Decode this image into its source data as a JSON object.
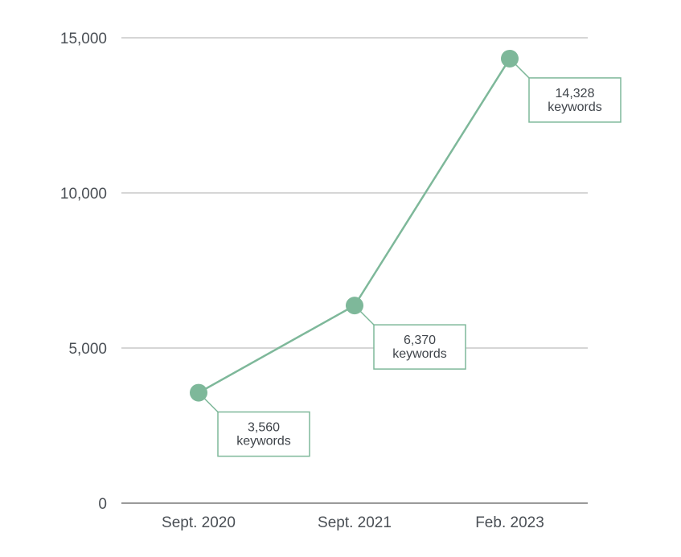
{
  "chart_data": {
    "type": "line",
    "categories": [
      "Sept. 2020",
      "Sept. 2021",
      "Feb. 2023"
    ],
    "series": [
      {
        "values": [
          3560,
          6370,
          14328
        ]
      }
    ],
    "data_labels": [
      {
        "value": "3,560",
        "unit": "keywords"
      },
      {
        "value": "6,370",
        "unit": "keywords"
      },
      {
        "value": "14,328",
        "unit": "keywords"
      }
    ],
    "yticks": [
      {
        "value": 0,
        "label": "0"
      },
      {
        "value": 5000,
        "label": "5,000"
      },
      {
        "value": 10000,
        "label": "10,000"
      },
      {
        "value": 15000,
        "label": "15,000"
      }
    ],
    "ylim": [
      0,
      15000
    ],
    "grid": true,
    "title": "",
    "xlabel": "",
    "ylabel": "",
    "colors": {
      "line": "#7eb89a",
      "marker": "#7eb89a",
      "callout_border": "#7eb89a",
      "grid": "#d6d6d6",
      "axis": "#9a9a9a",
      "tick_text": "#4a4f55",
      "callout_text": "#3f444a"
    }
  }
}
